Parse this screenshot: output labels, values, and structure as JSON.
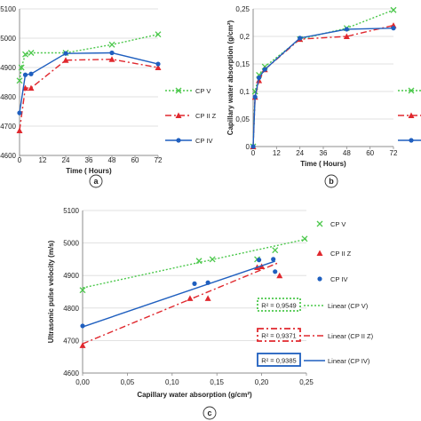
{
  "chart_data": [
    {
      "type": "line",
      "panel_label": "a",
      "xlabel": "Time ( Hours)",
      "ylabel": "",
      "x_ticks": [
        0,
        12,
        24,
        36,
        48,
        60,
        72
      ],
      "y_ticks": [
        4600,
        4700,
        4800,
        4900,
        5000,
        5100
      ],
      "y_tick_labels": [
        "4600",
        "4700",
        "4800",
        "4900",
        "5000",
        "5100"
      ],
      "xlim": [
        0,
        72
      ],
      "ylim": [
        4600,
        5100
      ],
      "legend_position": "right",
      "series": [
        {
          "name": "CP V",
          "color": "#4cc84c",
          "dash": "2,2",
          "marker": "x",
          "x": [
            0,
            1,
            3,
            6,
            24,
            48,
            72
          ],
          "y": [
            4855,
            4900,
            4945,
            4950,
            4950,
            4978,
            5013
          ]
        },
        {
          "name": "CP II Z",
          "color": "#e0282e",
          "dash": "7,3,2,3",
          "marker": "triangle",
          "x": [
            0,
            3,
            6,
            24,
            48,
            72
          ],
          "y": [
            4685,
            4830,
            4830,
            4925,
            4928,
            4900
          ]
        },
        {
          "name": "CP IV",
          "color": "#1f5fbf",
          "dash": "",
          "marker": "circle",
          "x": [
            0,
            3,
            6,
            24,
            48,
            72
          ],
          "y": [
            4745,
            4875,
            4878,
            4948,
            4950,
            4912
          ]
        }
      ]
    },
    {
      "type": "line",
      "panel_label": "b",
      "xlabel": "Time ( Hours)",
      "ylabel": "Capillary water absorption (g/cm²)",
      "x_ticks": [
        0,
        12,
        24,
        36,
        48,
        60,
        72
      ],
      "y_ticks": [
        0,
        0.05,
        0.1,
        0.15,
        0.2,
        0.25
      ],
      "y_tick_labels": [
        "0",
        "0,05",
        "0,1",
        "0,15",
        "0,2",
        "0,25"
      ],
      "xlim": [
        0,
        72
      ],
      "ylim": [
        0,
        0.25
      ],
      "legend_position": "right",
      "series": [
        {
          "name": "CP V",
          "color": "#4cc84c",
          "dash": "2,2",
          "marker": "x",
          "x": [
            0,
            1,
            3,
            6,
            24,
            48,
            72
          ],
          "y": [
            0,
            0.1,
            0.13,
            0.145,
            0.195,
            0.215,
            0.248
          ]
        },
        {
          "name": "CP II Z",
          "color": "#e0282e",
          "dash": "7,3,2,3",
          "marker": "triangle",
          "x": [
            0,
            1,
            3,
            6,
            24,
            48,
            72
          ],
          "y": [
            0,
            0.09,
            0.12,
            0.14,
            0.195,
            0.2,
            0.22
          ]
        },
        {
          "name": "CP IV",
          "color": "#1f5fbf",
          "dash": "",
          "marker": "circle",
          "x": [
            0,
            1,
            3,
            6,
            24,
            48,
            72
          ],
          "y": [
            0,
            0.09,
            0.125,
            0.14,
            0.197,
            0.213,
            0.215
          ]
        }
      ]
    },
    {
      "type": "scatter",
      "panel_label": "c",
      "xlabel": "Capillary water absorption (g/cm²)",
      "ylabel": "Ultrasonic pulse velocity (m/s)",
      "x_ticks": [
        0,
        0.05,
        0.1,
        0.15,
        0.2,
        0.25
      ],
      "x_tick_labels": [
        "0,00",
        "0,05",
        "0,10",
        "0,15",
        "0,20",
        "0,25"
      ],
      "y_ticks": [
        4600,
        4700,
        4800,
        4900,
        5000,
        5100
      ],
      "y_tick_labels": [
        "4600",
        "4700",
        "4800",
        "4900",
        "5000",
        "5100"
      ],
      "xlim": [
        0,
        0.25
      ],
      "ylim": [
        4600,
        5100
      ],
      "legend_position": "right",
      "series": [
        {
          "name": "CP V",
          "color": "#4cc84c",
          "marker": "x",
          "x": [
            0.0,
            0.13,
            0.145,
            0.195,
            0.215,
            0.248
          ],
          "y": [
            4855,
            4945,
            4950,
            4950,
            4978,
            5013
          ],
          "trend": {
            "label": "Linear (CP V)",
            "dash": "2,2",
            "slope": 600,
            "intercept": 4862,
            "x0": 0,
            "x1": 0.25
          },
          "r2": "R² = 0,9549"
        },
        {
          "name": "CP II Z",
          "color": "#e0282e",
          "marker": "triangle",
          "x": [
            0.0,
            0.12,
            0.14,
            0.195,
            0.2,
            0.22
          ],
          "y": [
            4685,
            4830,
            4830,
            4925,
            4928,
            4900
          ],
          "trend": {
            "label": "Linear (CP II Z)",
            "dash": "7,3,2,3",
            "slope": 1140,
            "intercept": 4690,
            "x0": 0,
            "x1": 0.22
          },
          "r2": "R² = 0,9371"
        },
        {
          "name": "CP IV",
          "color": "#1f5fbf",
          "marker": "circle",
          "x": [
            0.0,
            0.125,
            0.14,
            0.197,
            0.213,
            0.215
          ],
          "y": [
            4745,
            4875,
            4878,
            4948,
            4950,
            4912
          ],
          "trend": {
            "label": "Linear (CP IV)",
            "dash": "",
            "slope": 940,
            "intercept": 4742,
            "x0": 0,
            "x1": 0.215
          },
          "r2": "R² = 0,9385"
        }
      ]
    }
  ]
}
